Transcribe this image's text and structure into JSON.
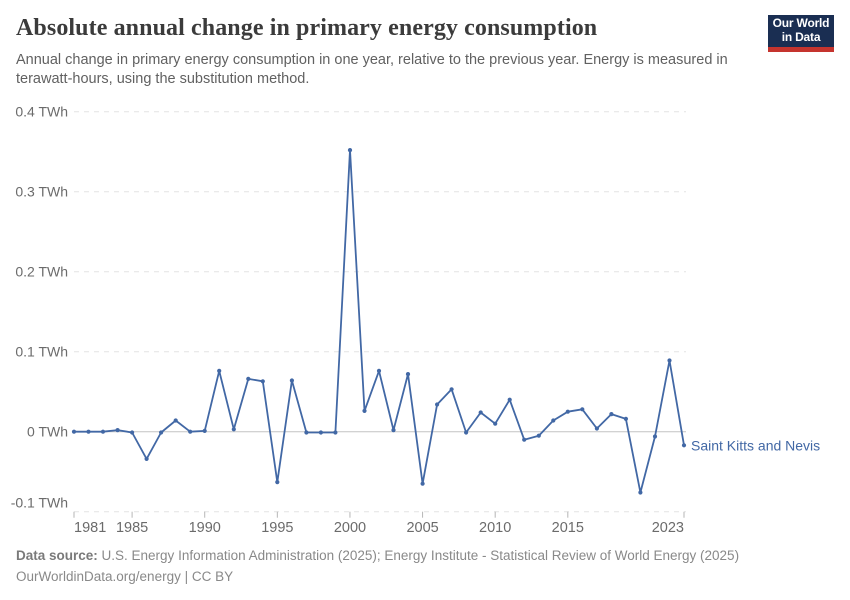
{
  "header": {
    "title": "Absolute annual change in primary energy consumption",
    "subtitle": "Annual change in primary energy consumption in one year, relative to the previous year. Energy is measured in terawatt-hours, using the substitution method."
  },
  "logo": {
    "line1": "Our World",
    "line2": "in Data"
  },
  "chart_data": {
    "type": "line",
    "title": "Absolute annual change in primary energy consumption",
    "unit": "TWh",
    "xlabel": "",
    "ylabel": "TWh",
    "ylim": [
      -0.1,
      0.4
    ],
    "grid": "dashed horizontal gridlines, solid zero line",
    "legend_position": "end-of-line label",
    "yticks": [
      {
        "value": 0.4,
        "label": "0.4 TWh"
      },
      {
        "value": 0.3,
        "label": "0.3 TWh"
      },
      {
        "value": 0.2,
        "label": "0.2 TWh"
      },
      {
        "value": 0.1,
        "label": "0.1 TWh"
      },
      {
        "value": 0,
        "label": "0 TWh"
      },
      {
        "value": -0.1,
        "label": "-0.1 TWh"
      }
    ],
    "xticks": [
      {
        "value": 1981,
        "label": "1981"
      },
      {
        "value": 1985,
        "label": "1985"
      },
      {
        "value": 1990,
        "label": "1990"
      },
      {
        "value": 1995,
        "label": "1995"
      },
      {
        "value": 2000,
        "label": "2000"
      },
      {
        "value": 2005,
        "label": "2005"
      },
      {
        "value": 2010,
        "label": "2010"
      },
      {
        "value": 2015,
        "label": "2015"
      },
      {
        "value": 2023,
        "label": "2023"
      }
    ],
    "x": [
      1981,
      1982,
      1983,
      1984,
      1985,
      1986,
      1987,
      1988,
      1989,
      1990,
      1991,
      1992,
      1993,
      1994,
      1995,
      1996,
      1997,
      1998,
      1999,
      2000,
      2001,
      2002,
      2003,
      2004,
      2005,
      2006,
      2007,
      2008,
      2009,
      2010,
      2011,
      2012,
      2013,
      2014,
      2015,
      2016,
      2017,
      2018,
      2019,
      2020,
      2021,
      2022,
      2023
    ],
    "series": [
      {
        "name": "Saint Kitts and Nevis",
        "values": [
          0,
          0,
          0,
          0.002,
          -0.001,
          -0.034,
          -0.001,
          0.014,
          0,
          0.001,
          0.076,
          0.003,
          0.066,
          0.063,
          -0.063,
          0.064,
          -0.001,
          -0.001,
          -0.001,
          0.352,
          0.026,
          0.076,
          0.002,
          0.072,
          -0.065,
          0.034,
          0.053,
          -0.001,
          0.024,
          0.01,
          0.04,
          -0.01,
          -0.005,
          0.014,
          0.025,
          0.028,
          0.004,
          0.022,
          0.016,
          -0.076,
          -0.006,
          0.089,
          -0.017
        ]
      }
    ],
    "end_label": "Saint Kitts and Nevis"
  },
  "colors": {
    "series_blue": "#4268a5",
    "grid": "#e3e3e3",
    "zero_line": "#c4c4c4",
    "tick_mark": "#b6b6b6",
    "axis_text": "#6b6b6b",
    "logo_navy": "#1a2e52",
    "logo_red": "#c5342e"
  },
  "footer": {
    "datasource_label": "Data source:",
    "datasource_text": " U.S. Energy Information Administration (2025); Energy Institute - Statistical Review of World Energy (2025)",
    "url": "OurWorldinData.org/energy",
    "separator": " | ",
    "license": "CC BY"
  }
}
